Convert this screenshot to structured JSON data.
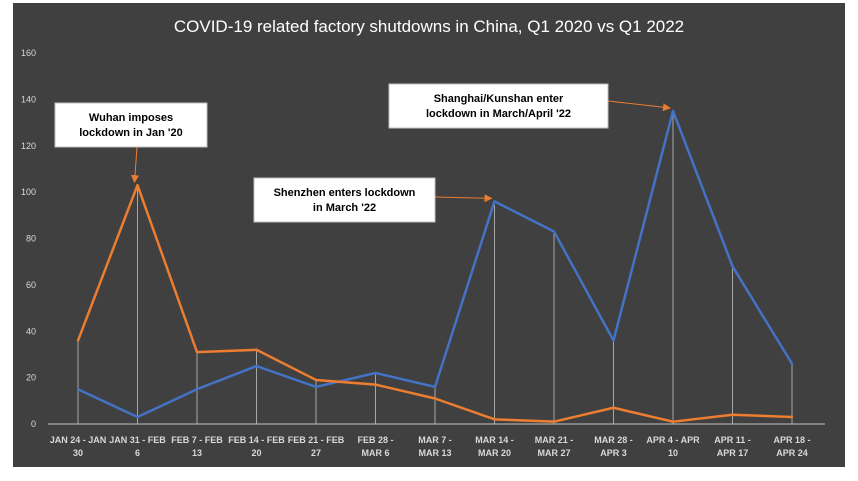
{
  "chart_data": {
    "type": "line",
    "title": "COVID-19 related factory shutdowns in China, Q1 2020 vs Q1 2022",
    "xlabel": "",
    "ylabel": "",
    "ylim": [
      0,
      160
    ],
    "yticks": [
      0,
      20,
      40,
      60,
      80,
      100,
      120,
      140,
      160
    ],
    "grid": false,
    "drop_lines": true,
    "categories": [
      [
        "JAN 24 - JAN",
        "30"
      ],
      [
        "JAN 31 - FEB",
        "6"
      ],
      [
        "FEB 7 - FEB",
        "13"
      ],
      [
        "FEB 14 - FEB",
        "20"
      ],
      [
        "FEB 21 - FEB",
        "27"
      ],
      [
        "FEB 28 -",
        "MAR 6"
      ],
      [
        "MAR 7 -",
        "MAR 13"
      ],
      [
        "MAR 14 -",
        "MAR 20"
      ],
      [
        "MAR 21 -",
        "MAR 27"
      ],
      [
        "MAR 28 -",
        "APR 3"
      ],
      [
        "APR 4 - APR",
        "10"
      ],
      [
        "APR 11 -",
        "APR 17"
      ],
      [
        "APR 18 -",
        "APR 24"
      ]
    ],
    "series": [
      {
        "color": "#4472c4",
        "values": [
          15,
          3,
          15,
          25,
          16,
          22,
          16,
          96,
          83,
          36,
          135,
          68,
          26
        ]
      },
      {
        "color": "#ed7d31",
        "values": [
          36,
          103,
          31,
          32,
          19,
          17,
          11,
          2,
          1,
          7,
          1,
          4,
          3
        ]
      }
    ],
    "annotations": [
      {
        "lines": [
          "Wuhan imposes",
          "lockdown in Jan '20"
        ],
        "target_index": 1,
        "series": 1
      },
      {
        "lines": [
          "Shenzhen enters lockdown",
          "in March '22"
        ],
        "target_index": 7,
        "series": 0
      },
      {
        "lines": [
          "Shanghai/Kunshan enter",
          "lockdown in March/April '22"
        ],
        "target_index": 10,
        "series": 0
      }
    ],
    "colors": {
      "background": "#404040",
      "text": "#d9d9d9",
      "title": "#ffffff",
      "drop_line": "#a6a6a6",
      "arrow": "#ed7d31"
    }
  }
}
